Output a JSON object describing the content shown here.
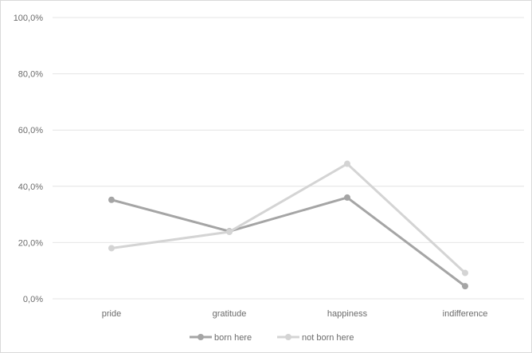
{
  "chart_data": {
    "type": "line",
    "categories": [
      "pride",
      "gratitude",
      "happiness",
      "indifference"
    ],
    "series": [
      {
        "name": "born here",
        "values": [
          35.2,
          24.0,
          36.0,
          4.5
        ],
        "color": "#a5a5a5"
      },
      {
        "name": "not born here",
        "values": [
          18.0,
          23.8,
          48.0,
          9.2
        ],
        "color": "#d4d4d4"
      }
    ],
    "yticks": [
      "0,0%",
      "20,0%",
      "40,0%",
      "60,0%",
      "80,0%",
      "100,0%"
    ],
    "ylim": [
      0,
      100
    ],
    "grid": true,
    "legend": "bottom",
    "title": "",
    "xlabel": "",
    "ylabel": ""
  }
}
